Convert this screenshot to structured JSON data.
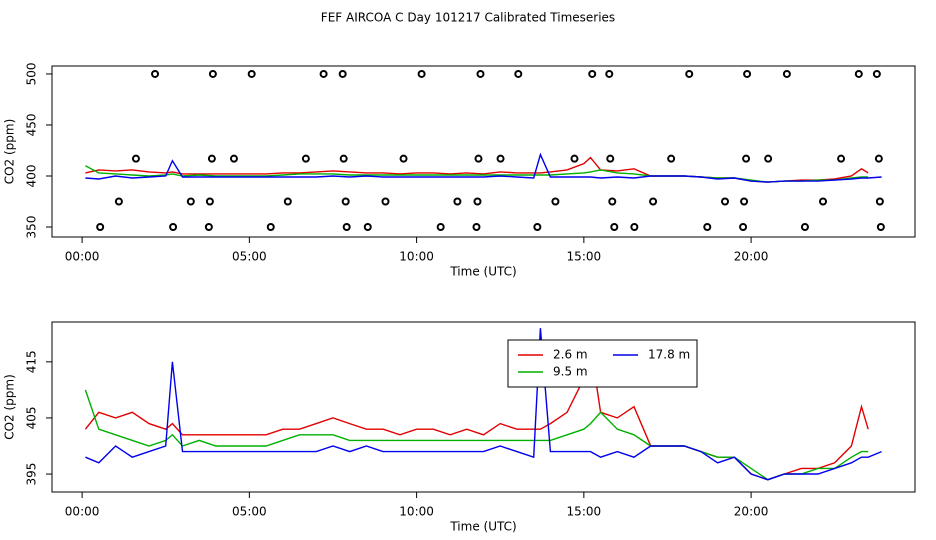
{
  "title": "FEF AIRCOA C  Day 101217  Calibrated Timeseries",
  "chart_data": [
    {
      "type": "line",
      "xlabel": "Time (UTC)",
      "ylabel": "CO2 (ppm)",
      "xlim": [
        -0.9,
        24.9
      ],
      "ylim": [
        340.2,
        507.8
      ],
      "xticks": [
        {
          "value": 0,
          "label": "00:00"
        },
        {
          "value": 5,
          "label": "05:00"
        },
        {
          "value": 10,
          "label": "10:00"
        },
        {
          "value": 15,
          "label": "15:00"
        },
        {
          "value": 20,
          "label": "20:00"
        }
      ],
      "yticks": [
        350,
        400,
        450,
        500
      ],
      "x": [
        0.1,
        0.5,
        1,
        1.5,
        2,
        2.5,
        2.7,
        3,
        3.5,
        4,
        4.5,
        5,
        5.5,
        6,
        6.5,
        7,
        7.5,
        8,
        8.5,
        9,
        9.5,
        10,
        10.5,
        11,
        11.5,
        12,
        12.5,
        13,
        13.5,
        13.7,
        14,
        14.5,
        15,
        15.2,
        15.5,
        16,
        16.5,
        17,
        17.5,
        18,
        18.5,
        19,
        19.5,
        20,
        20.5,
        21,
        21.5,
        22,
        22.5,
        23,
        23.3,
        23.5,
        23.9
      ],
      "series": [
        {
          "color": "#e00000",
          "values": [
            403,
            406,
            405,
            406,
            404,
            403,
            404,
            402,
            402,
            402,
            402,
            402,
            402,
            403,
            403,
            404,
            405,
            404,
            403,
            403,
            402,
            403,
            403,
            402,
            403,
            402,
            404,
            403,
            403,
            403,
            404,
            406,
            412,
            418,
            406,
            405,
            407,
            400,
            400,
            400,
            399,
            398,
            398,
            395,
            394,
            395,
            396,
            396,
            397,
            400,
            407,
            403,
            null
          ]
        },
        {
          "color": "#00b000",
          "values": [
            410,
            403,
            402,
            401,
            400,
            401,
            402,
            400,
            401,
            400,
            400,
            400,
            400,
            401,
            402,
            402,
            402,
            401,
            401,
            401,
            401,
            401,
            401,
            401,
            401,
            401,
            401,
            401,
            401,
            401,
            401,
            402,
            403,
            404,
            406,
            403,
            402,
            400,
            400,
            400,
            399,
            398,
            398,
            396,
            394,
            395,
            395,
            396,
            396,
            398,
            399,
            399,
            null
          ]
        },
        {
          "color": "#0000ee",
          "values": [
            398,
            397,
            400,
            398,
            399,
            400,
            415,
            399,
            399,
            399,
            399,
            399,
            399,
            399,
            399,
            399,
            400,
            399,
            400,
            399,
            399,
            399,
            399,
            399,
            399,
            399,
            400,
            399,
            398,
            421,
            399,
            399,
            399,
            399,
            398,
            399,
            398,
            400,
            400,
            400,
            399,
            397,
            398,
            395,
            394,
            395,
            395,
            395,
            396,
            397,
            398,
            398,
            399
          ]
        }
      ],
      "points": {
        "color": "#000000",
        "x": [
          2.18,
          3.91,
          5.07,
          7.22,
          7.79,
          10.15,
          11.91,
          13.04,
          15.25,
          15.76,
          18.15,
          19.88,
          21.07,
          23.22,
          23.76,
          1.61,
          3.88,
          4.54,
          6.69,
          7.82,
          9.61,
          11.85,
          12.51,
          14.72,
          15.79,
          17.61,
          19.85,
          20.51,
          22.69,
          23.82,
          1.1,
          3.25,
          3.82,
          6.15,
          7.88,
          9.07,
          11.22,
          11.82,
          14.15,
          15.85,
          17.07,
          19.22,
          19.79,
          22.15,
          23.85,
          0.54,
          2.72,
          3.79,
          5.64,
          7.91,
          8.54,
          10.72,
          11.79,
          13.61,
          15.91,
          16.51,
          18.69,
          19.76,
          21.61,
          23.88
        ],
        "values": [
          500,
          500,
          500,
          500,
          500,
          500,
          500,
          500,
          500,
          500,
          500,
          500,
          500,
          500,
          500,
          417,
          417,
          417,
          417,
          417,
          417,
          417,
          417,
          417,
          417,
          417,
          417,
          417,
          417,
          417,
          375,
          375,
          375,
          375,
          375,
          375,
          375,
          375,
          375,
          375,
          375,
          375,
          375,
          375,
          375,
          350,
          350,
          350,
          350,
          350,
          350,
          350,
          350,
          350,
          350,
          350,
          350,
          350,
          350,
          350
        ]
      }
    },
    {
      "type": "line",
      "xlabel": "Time (UTC)",
      "ylabel": "CO2 (ppm)",
      "xlim": [
        -0.9,
        24.9
      ],
      "ylim": [
        391.8,
        422.1
      ],
      "xticks": [
        {
          "value": 0,
          "label": "00:00"
        },
        {
          "value": 5,
          "label": "05:00"
        },
        {
          "value": 10,
          "label": "10:00"
        },
        {
          "value": 15,
          "label": "15:00"
        },
        {
          "value": 20,
          "label": "20:00"
        }
      ],
      "yticks": [
        395,
        405,
        415
      ],
      "x": [
        0.1,
        0.5,
        1,
        1.5,
        2,
        2.5,
        2.7,
        3,
        3.5,
        4,
        4.5,
        5,
        5.5,
        6,
        6.5,
        7,
        7.5,
        8,
        8.5,
        9,
        9.5,
        10,
        10.5,
        11,
        11.5,
        12,
        12.5,
        13,
        13.5,
        13.7,
        14,
        14.5,
        15,
        15.2,
        15.5,
        16,
        16.5,
        17,
        17.5,
        18,
        18.5,
        19,
        19.5,
        20,
        20.5,
        21,
        21.5,
        22,
        22.5,
        23,
        23.3,
        23.5,
        23.9
      ],
      "series": [
        {
          "name": "2.6 m",
          "color": "#e00000",
          "values": [
            403,
            406,
            405,
            406,
            404,
            403,
            404,
            402,
            402,
            402,
            402,
            402,
            402,
            403,
            403,
            404,
            405,
            404,
            403,
            403,
            402,
            403,
            403,
            402,
            403,
            402,
            404,
            403,
            403,
            403,
            404,
            406,
            412,
            418,
            406,
            405,
            407,
            400,
            400,
            400,
            399,
            398,
            398,
            395,
            394,
            395,
            396,
            396,
            397,
            400,
            407,
            403,
            null
          ]
        },
        {
          "name": "9.5 m",
          "color": "#00b000",
          "values": [
            410,
            403,
            402,
            401,
            400,
            401,
            402,
            400,
            401,
            400,
            400,
            400,
            400,
            401,
            402,
            402,
            402,
            401,
            401,
            401,
            401,
            401,
            401,
            401,
            401,
            401,
            401,
            401,
            401,
            401,
            401,
            402,
            403,
            404,
            406,
            403,
            402,
            400,
            400,
            400,
            399,
            398,
            398,
            396,
            394,
            395,
            395,
            396,
            396,
            398,
            399,
            399,
            null
          ]
        },
        {
          "name": "17.8 m",
          "color": "#0000ee",
          "values": [
            398,
            397,
            400,
            398,
            399,
            400,
            415,
            399,
            399,
            399,
            399,
            399,
            399,
            399,
            399,
            399,
            400,
            399,
            400,
            399,
            399,
            399,
            399,
            399,
            399,
            399,
            400,
            399,
            398,
            421,
            399,
            399,
            399,
            399,
            398,
            399,
            398,
            400,
            400,
            400,
            399,
            397,
            398,
            395,
            394,
            395,
            395,
            395,
            396,
            397,
            398,
            398,
            399
          ]
        }
      ],
      "legend": "top-center"
    }
  ]
}
